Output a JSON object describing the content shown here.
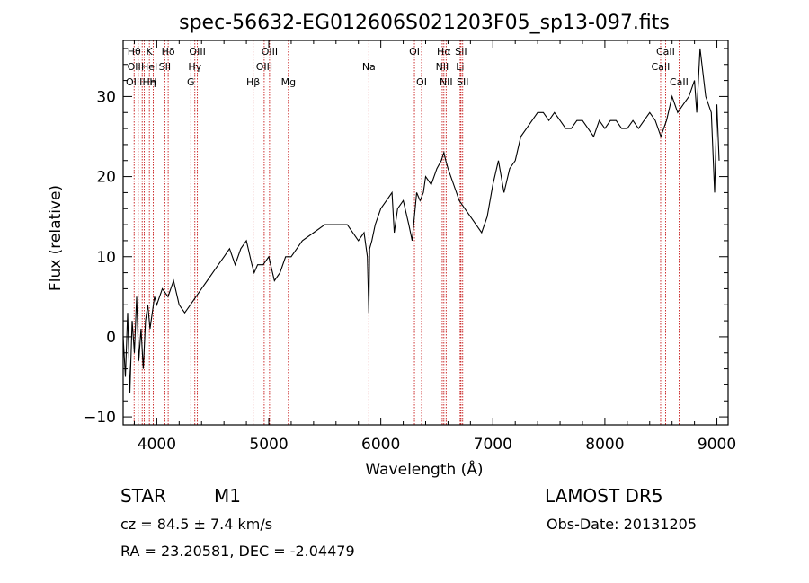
{
  "chart_data": {
    "type": "line",
    "title": "spec-56632-EG012606S021203F05_sp13-097.fits",
    "xlabel": "Wavelength (Å)",
    "ylabel": "Flux (relative)",
    "xlim": [
      3700,
      9100
    ],
    "ylim": [
      -11,
      37
    ],
    "xticks": [
      4000,
      5000,
      6000,
      7000,
      8000,
      9000
    ],
    "yticks": [
      -10,
      0,
      10,
      20,
      30
    ],
    "grid": false,
    "series": [
      {
        "x": [
          3700,
          3720,
          3740,
          3760,
          3780,
          3800,
          3820,
          3840,
          3860,
          3880,
          3900,
          3920,
          3940,
          3960,
          3980,
          4000,
          4050,
          4100,
          4150,
          4200,
          4250,
          4300,
          4350,
          4400,
          4450,
          4500,
          4550,
          4600,
          4650,
          4700,
          4750,
          4800,
          4850,
          4870,
          4900,
          4950,
          5000,
          5050,
          5100,
          5150,
          5200,
          5250,
          5300,
          5400,
          5500,
          5600,
          5700,
          5800,
          5850,
          5880,
          5893,
          5900,
          5920,
          5950,
          6000,
          6050,
          6100,
          6120,
          6150,
          6200,
          6250,
          6280,
          6300,
          6320,
          6350,
          6380,
          6400,
          6450,
          6500,
          6540,
          6563,
          6580,
          6600,
          6650,
          6700,
          6750,
          6800,
          6850,
          6900,
          6950,
          7000,
          7050,
          7100,
          7150,
          7200,
          7250,
          7300,
          7350,
          7400,
          7450,
          7500,
          7550,
          7600,
          7650,
          7700,
          7750,
          7800,
          7850,
          7900,
          7950,
          8000,
          8050,
          8100,
          8150,
          8200,
          8250,
          8300,
          8350,
          8400,
          8450,
          8500,
          8550,
          8600,
          8650,
          8700,
          8750,
          8800,
          8820,
          8850,
          8900,
          8950,
          8980,
          9000,
          9020
        ],
        "y": [
          0,
          -5,
          3,
          -7,
          2,
          -2,
          5,
          -3,
          1,
          -4,
          2,
          4,
          1,
          3,
          5,
          4,
          6,
          5,
          7,
          4,
          3,
          4,
          5,
          6,
          7,
          8,
          9,
          10,
          11,
          9,
          11,
          12,
          9,
          8,
          9,
          9,
          10,
          7,
          8,
          10,
          10,
          11,
          12,
          13,
          14,
          14,
          14,
          12,
          13,
          10,
          3,
          11,
          12,
          14,
          16,
          17,
          18,
          13,
          16,
          17,
          14,
          12,
          15,
          18,
          17,
          18,
          20,
          19,
          21,
          22,
          23,
          22,
          21,
          19,
          17,
          16,
          15,
          14,
          13,
          15,
          19,
          22,
          18,
          21,
          22,
          25,
          26,
          27,
          28,
          28,
          27,
          28,
          27,
          26,
          26,
          27,
          27,
          26,
          25,
          27,
          26,
          27,
          27,
          26,
          26,
          27,
          26,
          27,
          28,
          27,
          25,
          27,
          30,
          28,
          29,
          30,
          32,
          28,
          36,
          30,
          28,
          18,
          29,
          22
        ]
      }
    ],
    "line_markers": [
      {
        "x": 3798,
        "labels": [
          "Hθ",
          "OII",
          "OIII"
        ]
      },
      {
        "x": 3835,
        "labels": [
          "",
          "",
          ""
        ]
      },
      {
        "x": 3870,
        "labels": [
          "",
          "",
          ""
        ]
      },
      {
        "x": 3889,
        "labels": [
          "",
          "",
          ""
        ]
      },
      {
        "x": 3934,
        "labels": [
          "K",
          "HeI",
          "Hη"
        ]
      },
      {
        "x": 3969,
        "labels": [
          "",
          "",
          "H"
        ]
      },
      {
        "x": 4072,
        "labels": [
          "",
          "SII",
          ""
        ]
      },
      {
        "x": 4102,
        "labels": [
          "Hδ",
          "",
          ""
        ]
      },
      {
        "x": 4304,
        "labels": [
          "",
          "",
          "G"
        ]
      },
      {
        "x": 4340,
        "labels": [
          "",
          "Hγ",
          ""
        ]
      },
      {
        "x": 4363,
        "labels": [
          "OIII",
          "",
          ""
        ]
      },
      {
        "x": 4861,
        "labels": [
          "",
          "",
          "Hβ"
        ]
      },
      {
        "x": 4959,
        "labels": [
          "",
          "OIII",
          ""
        ]
      },
      {
        "x": 5007,
        "labels": [
          "OIII",
          "",
          ""
        ]
      },
      {
        "x": 5175,
        "labels": [
          "",
          "",
          "Mg"
        ]
      },
      {
        "x": 5893,
        "labels": [
          "",
          "Na",
          ""
        ]
      },
      {
        "x": 6300,
        "labels": [
          "OI",
          "",
          ""
        ]
      },
      {
        "x": 6364,
        "labels": [
          "",
          "",
          "OI"
        ]
      },
      {
        "x": 6548,
        "labels": [
          "",
          "NII",
          ""
        ]
      },
      {
        "x": 6563,
        "labels": [
          "Hα",
          "",
          ""
        ]
      },
      {
        "x": 6583,
        "labels": [
          "",
          "",
          "NII"
        ]
      },
      {
        "x": 6708,
        "labels": [
          "",
          "Li",
          ""
        ]
      },
      {
        "x": 6716,
        "labels": [
          "SII",
          "",
          ""
        ]
      },
      {
        "x": 6731,
        "labels": [
          "",
          "",
          "SII"
        ]
      },
      {
        "x": 8498,
        "labels": [
          "",
          "CaII",
          ""
        ]
      },
      {
        "x": 8542,
        "labels": [
          "CaII",
          "",
          ""
        ]
      },
      {
        "x": 8662,
        "labels": [
          "",
          "",
          "CaII"
        ]
      }
    ]
  },
  "info": {
    "class": "STAR",
    "subclass": "M1",
    "survey": "LAMOST DR5",
    "cz": "cz = 84.5 ± 7.4 km/s",
    "obs_date": "Obs-Date: 20131205",
    "radec": "RA =  23.20581, DEC =  -2.04479"
  }
}
